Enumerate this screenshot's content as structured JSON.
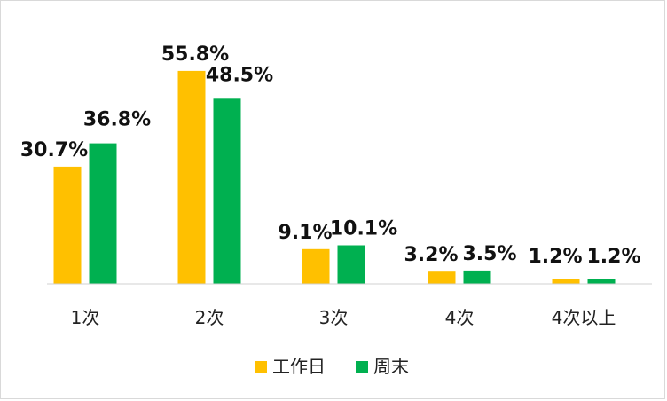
{
  "chart_data": {
    "type": "bar",
    "categories": [
      "1次",
      "2次",
      "3次",
      "4次",
      "4次以上"
    ],
    "series": [
      {
        "name": "工作日",
        "values": [
          30.7,
          55.8,
          9.1,
          3.2,
          1.2
        ],
        "labels": [
          "30.7%",
          "55.8%",
          "9.1%",
          "3.2%",
          "1.2%"
        ],
        "color": "#FFC000"
      },
      {
        "name": "周末",
        "values": [
          36.8,
          48.5,
          10.1,
          3.5,
          1.2
        ],
        "labels": [
          "36.8%",
          "48.5%",
          "10.1%",
          "3.5%",
          "1.2%"
        ],
        "color": "#00B050"
      }
    ],
    "ylim": [
      0,
      56
    ],
    "grid": false,
    "legend": "bottom"
  }
}
